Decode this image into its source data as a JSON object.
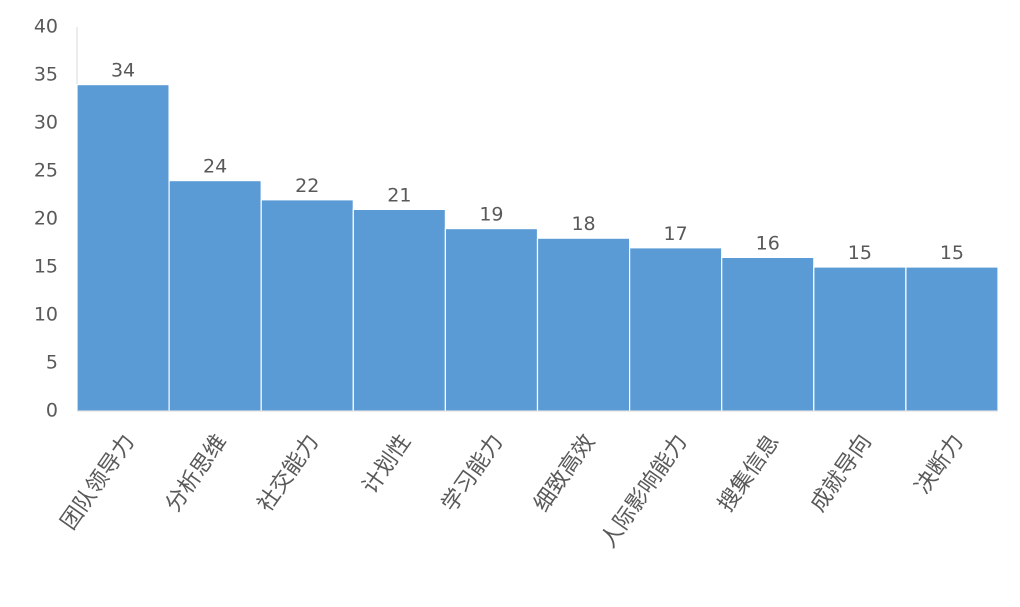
{
  "chart_data": {
    "type": "bar",
    "categories": [
      "团队领导力",
      "分析思维",
      "社交能力",
      "计划性",
      "学习能力",
      "细致高效",
      "人际影响能力",
      "搜集信息",
      "成就导向",
      "决断力"
    ],
    "values": [
      34,
      24,
      22,
      21,
      19,
      18,
      17,
      16,
      15,
      15
    ],
    "color": "#5b9bd5",
    "ylim": [
      0,
      40
    ],
    "yticks": [
      0,
      5,
      10,
      15,
      20,
      25,
      30,
      35,
      40
    ],
    "grid": false
  }
}
